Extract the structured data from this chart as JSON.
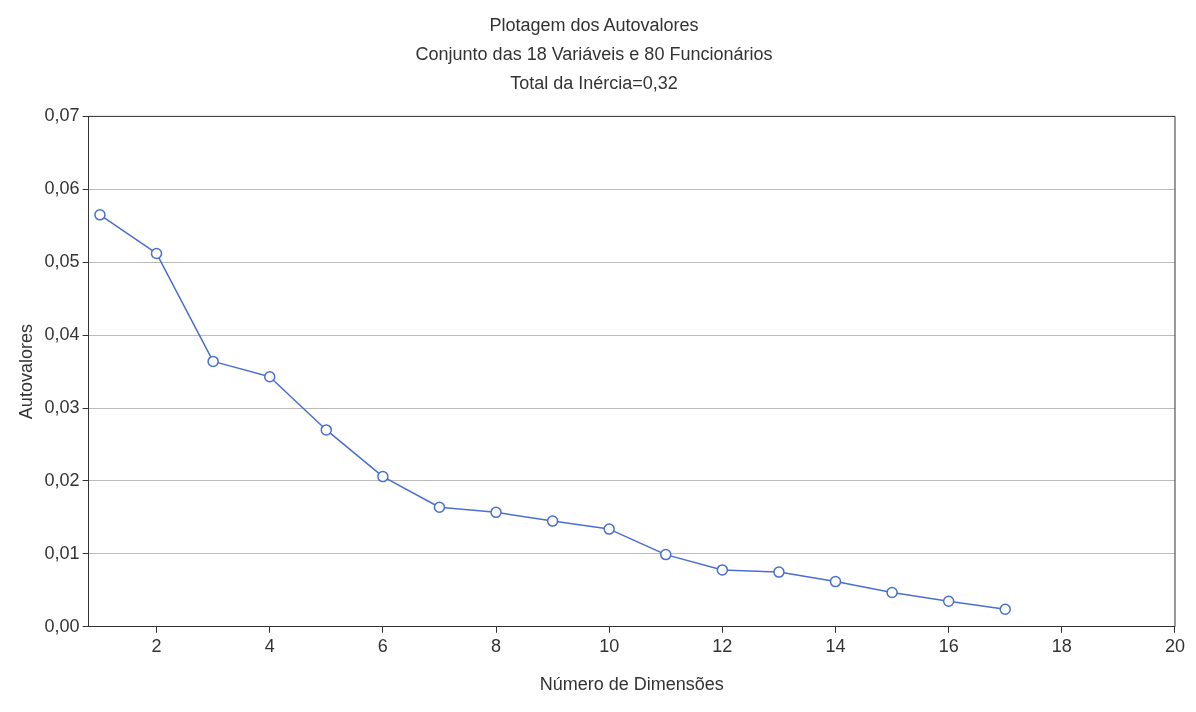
{
  "chart_data": {
    "type": "line",
    "title": "Plotagem dos Autovalores",
    "subtitle": "Conjunto das 18 Variáveis e 80 Funcionários",
    "annotations": [
      "Total da Inércia=0,32"
    ],
    "xlabel": "Número de Dimensões",
    "ylabel": "Autovalores",
    "x": [
      1,
      2,
      3,
      4,
      5,
      6,
      7,
      8,
      9,
      10,
      11,
      12,
      13,
      14,
      15,
      16,
      17
    ],
    "series": [
      {
        "color": "#4a6fd0",
        "values": [
          0.0565,
          0.0512,
          0.0364,
          0.0343,
          0.027,
          0.0206,
          0.0164,
          0.0157,
          0.0145,
          0.0134,
          0.0099,
          0.0078,
          0.0075,
          0.0062,
          0.0047,
          0.0035,
          0.0024
        ]
      }
    ],
    "xlim": [
      0.8,
      20
    ],
    "xticks": [
      2,
      4,
      6,
      8,
      10,
      12,
      14,
      16,
      18,
      20
    ],
    "ylim": [
      0,
      0.07
    ],
    "yticks": [
      {
        "value": 0,
        "label": "0,00"
      },
      {
        "value": 0.01,
        "label": "0,01"
      },
      {
        "value": 0.02,
        "label": "0,02"
      },
      {
        "value": 0.03,
        "label": "0,03"
      },
      {
        "value": 0.04,
        "label": "0,04"
      },
      {
        "value": 0.05,
        "label": "0,05"
      },
      {
        "value": 0.06,
        "label": "0,06"
      },
      {
        "value": 0.07,
        "label": "0,07"
      }
    ],
    "grid": "y",
    "legend": false,
    "marker": "circle",
    "line_style": "solid"
  }
}
